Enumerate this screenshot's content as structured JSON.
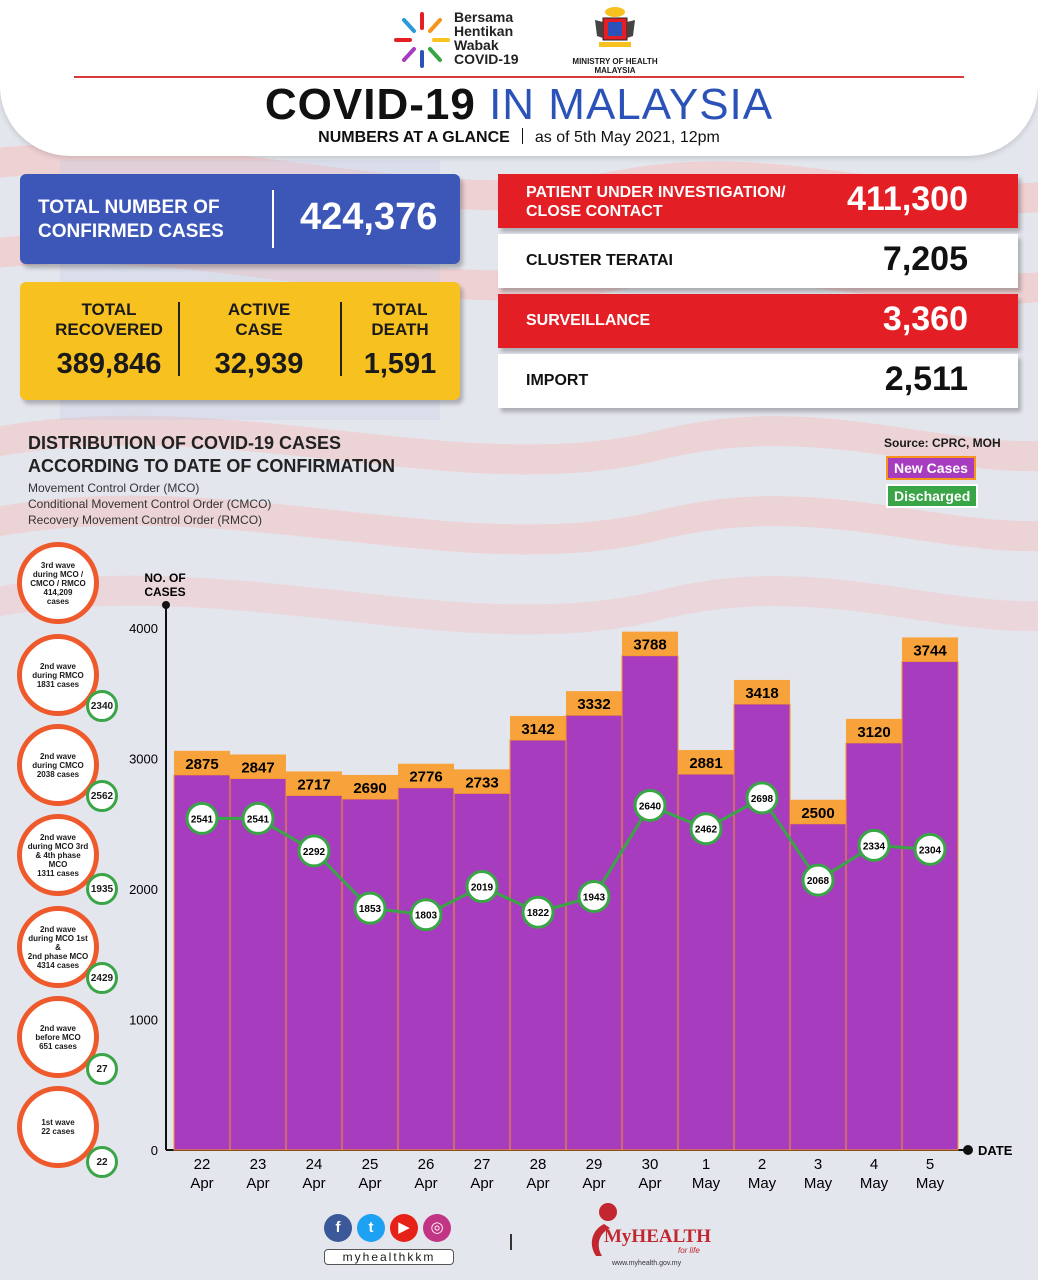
{
  "header": {
    "campaign_lines": [
      "Bersama",
      "Hentikan",
      "Wabak",
      "COVID-19"
    ],
    "ministry_lines": [
      "MINISTRY OF HEALTH",
      "MALAYSIA"
    ],
    "title_bold": "COVID-19",
    "title_light": "IN MALAYSIA",
    "subtitle_bold": "NUMBERS AT A GLANCE",
    "subtitle_date": "as of 5th May 2021, 12pm"
  },
  "summary": {
    "total_confirmed_label": [
      "TOTAL NUMBER OF",
      "CONFIRMED CASES"
    ],
    "total_confirmed_value": "424,376",
    "recovered_label": [
      "TOTAL",
      "RECOVERED"
    ],
    "recovered_value": "389,846",
    "active_label": [
      "ACTIVE",
      "CASE"
    ],
    "active_value": "32,939",
    "death_label": [
      "TOTAL",
      "DEATH"
    ],
    "death_value": "1,591"
  },
  "categories": [
    {
      "label": [
        "PATIENT UNDER INVESTIGATION/",
        "CLOSE CONTACT"
      ],
      "value": "411,300",
      "color": "#e31e24"
    },
    {
      "label": [
        "CLUSTER TERATAI"
      ],
      "value": "7,205",
      "color": "#ffffff"
    },
    {
      "label": [
        "SURVEILLANCE"
      ],
      "value": "3,360",
      "color": "#e31e24"
    },
    {
      "label": [
        "IMPORT"
      ],
      "value": "2,511",
      "color": "#ffffff"
    }
  ],
  "distribution": {
    "title": [
      "DISTRIBUTION OF COVID-19 CASES",
      "ACCORDING TO DATE OF CONFIRMATION"
    ],
    "notes": [
      "Movement Control Order (MCO)",
      "Conditional Movement Control Order (CMCO)",
      "Recovery Movement Control Order (RMCO)"
    ],
    "source": "Source: CPRC, MOH",
    "legend_new": "New Cases",
    "legend_discharged": "Discharged"
  },
  "waves": [
    {
      "text": "3rd wave\nduring MCO /\nCMCO / RMCO\n414,209\ncases",
      "discharged": ""
    },
    {
      "text": "2nd wave\nduring RMCO\n1831 cases",
      "discharged": "2340"
    },
    {
      "text": "2nd wave\nduring CMCO\n2038 cases",
      "discharged": "2562"
    },
    {
      "text": "2nd wave\nduring MCO 3rd\n& 4th phase MCO\n1311 cases",
      "discharged": "1935"
    },
    {
      "text": "2nd wave\nduring MCO 1st &\n2nd phase MCO\n4314 cases",
      "discharged": "2429"
    },
    {
      "text": "2nd wave\nbefore MCO\n651 cases",
      "discharged": "27"
    },
    {
      "text": "1st wave\n22 cases",
      "discharged": "22"
    }
  ],
  "chart_data": {
    "type": "bar",
    "ylabel": "NO. OF CASES",
    "xlabel": "DATE",
    "ylim": [
      0,
      4000
    ],
    "yticks": [
      0,
      1000,
      2000,
      3000,
      4000
    ],
    "categories": [
      "22 Apr",
      "23 Apr",
      "24 Apr",
      "25 Apr",
      "26 Apr",
      "27 Apr",
      "28 Apr",
      "29 Apr",
      "30 Apr",
      "1 May",
      "2 May",
      "3 May",
      "4 May",
      "5 May"
    ],
    "series": [
      {
        "name": "New Cases",
        "type": "bar",
        "color": "#a83cbf",
        "values": [
          2875,
          2847,
          2717,
          2690,
          2776,
          2733,
          3142,
          3332,
          3788,
          2881,
          3418,
          2500,
          3120,
          3744
        ]
      },
      {
        "name": "Discharged",
        "type": "line",
        "color": "#3aa547",
        "values": [
          2541,
          2541,
          2292,
          1853,
          1803,
          2019,
          1822,
          1943,
          2640,
          2462,
          2698,
          2068,
          2334,
          2304
        ]
      }
    ]
  },
  "footer": {
    "handle": "myhealthkkm",
    "brand": "MyHEALTH",
    "tagline": "for life",
    "url": "www.myhealth.gov.my"
  }
}
